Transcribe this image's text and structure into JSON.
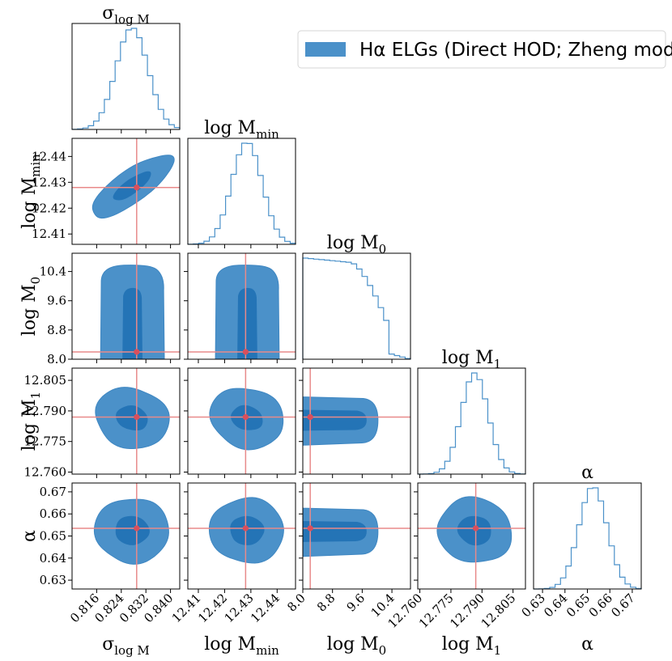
{
  "chart_data": {
    "type": "corner",
    "legend": {
      "text": "Hα ELGs (Direct HOD; Zheng model)",
      "placement": "top-right",
      "color": "#2f7fc1"
    },
    "truth_color": "#e88a8a",
    "marker_color": "#d94f5c",
    "contour_colors": [
      "#4b91c9",
      "#2474b6"
    ],
    "hist_color": "#4b91c9",
    "parameters": [
      {
        "name": "sigma",
        "title": "σlog M",
        "title_main": "σ",
        "title_sub": "log M",
        "label_main": "σ",
        "label_sub": "log M",
        "range": [
          0.808,
          0.843
        ],
        "truth": 0.829,
        "ticks": [
          "0.816",
          "0.824",
          "0.832",
          "0.840"
        ],
        "tick_values": [
          0.816,
          0.824,
          0.832,
          0.84
        ],
        "hist_center": 0.8275,
        "hist_sd": 0.0052
      },
      {
        "name": "logMmin",
        "title": "log Mmin",
        "title_main": "log M",
        "title_sub": "min",
        "label_main": "log M",
        "label_sub": "min",
        "range": [
          12.406,
          12.447
        ],
        "truth": 12.428,
        "ticks": [
          "12.41",
          "12.42",
          "12.43",
          "12.44"
        ],
        "tick_values": [
          12.41,
          12.42,
          12.43,
          12.44
        ],
        "hist_center": 12.4285,
        "hist_sd": 0.0058
      },
      {
        "name": "logM0",
        "title": "log M0",
        "title_main": "log M",
        "title_sub": "0",
        "label_main": "log M",
        "label_sub": "0",
        "range": [
          8.0,
          10.9
        ],
        "truth": 8.2,
        "ticks": [
          "8.0",
          "8.8",
          "9.6",
          "10.4"
        ],
        "tick_values": [
          8.0,
          8.8,
          9.6,
          10.4
        ],
        "hist_center": 8.0,
        "hist_sd": 0
      },
      {
        "name": "logM1",
        "title": "log M1",
        "title_main": "log M",
        "title_sub": "1",
        "label_main": "log M",
        "label_sub": "1",
        "range": [
          12.759,
          12.811
        ],
        "truth": 12.787,
        "ticks": [
          "12.760",
          "12.775",
          "12.790",
          "12.805"
        ],
        "tick_values": [
          12.76,
          12.775,
          12.79,
          12.805
        ],
        "hist_center": 12.7865,
        "hist_sd": 0.0065
      },
      {
        "name": "alpha",
        "title": "α",
        "title_main": "α",
        "title_sub": "",
        "label_main": "α",
        "label_sub": "",
        "range": [
          0.626,
          0.674
        ],
        "truth": 0.6535,
        "ticks": [
          "0.63",
          "0.64",
          "0.65",
          "0.66",
          "0.67"
        ],
        "tick_values": [
          0.63,
          0.64,
          0.65,
          0.66,
          0.67
        ],
        "hist_center": 0.6525,
        "hist_sd": 0.0063
      }
    ]
  }
}
